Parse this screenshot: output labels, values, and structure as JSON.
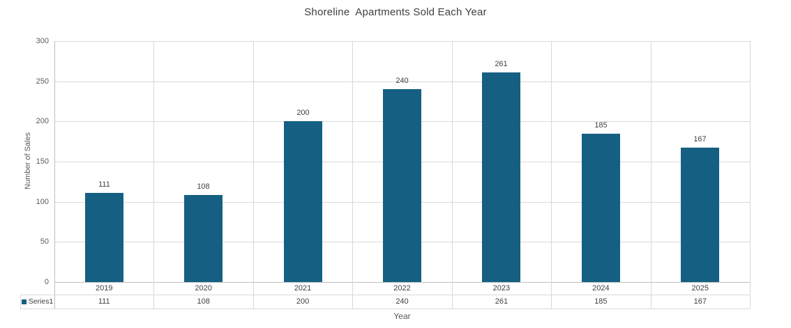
{
  "chart_data": {
    "type": "bar",
    "title": "Shoreline  Apartments Sold Each Year",
    "xlabel": "Year",
    "ylabel": "Number of Sales",
    "categories": [
      "2019",
      "2020",
      "2021",
      "2022",
      "2023",
      "2024",
      "2025"
    ],
    "series": [
      {
        "name": "Series1",
        "values": [
          111,
          108,
          200,
          240,
          261,
          185,
          167
        ]
      }
    ],
    "ylim": [
      0,
      300
    ],
    "yticks": [
      0,
      50,
      100,
      150,
      200,
      250,
      300
    ],
    "grid": "horizontal and vertical category boundaries",
    "legend_position": "bottom-left of data table",
    "data_labels": true,
    "data_table": true,
    "colors": {
      "bar": "#156082",
      "gridline": "#d9d9d9",
      "axis_line": "#bfbfbf",
      "title_text": "#404040",
      "tick_text": "#595959",
      "label_text": "#404040"
    }
  }
}
